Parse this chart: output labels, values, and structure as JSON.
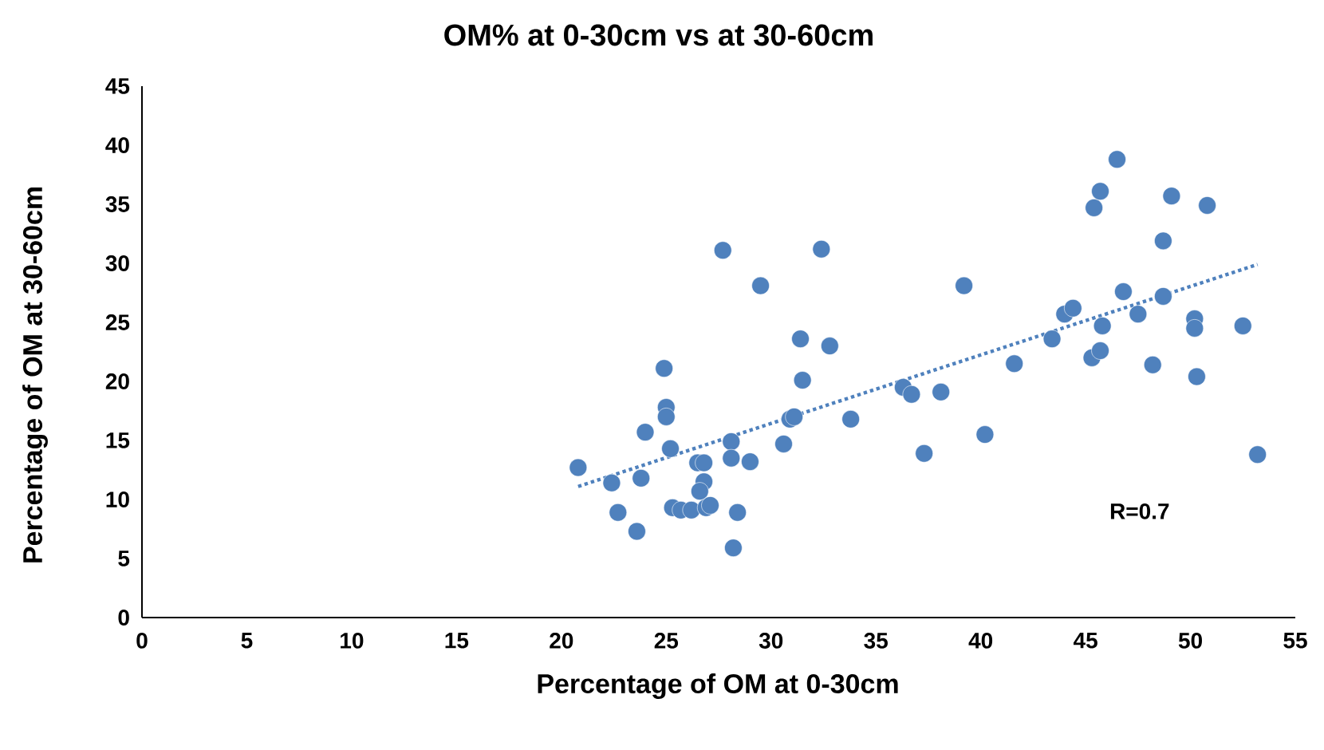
{
  "chart_data": {
    "type": "scatter",
    "title": "OM% at 0-30cm vs at 30-60cm",
    "xlabel": "Percentage of OM at 0-30cm",
    "ylabel": "Percentage of OM at 30-60cm",
    "annotations": [
      "R=0.7"
    ],
    "xlim": [
      0,
      55
    ],
    "ylim": [
      0,
      45
    ],
    "xticks": [
      0,
      5,
      10,
      15,
      20,
      25,
      30,
      35,
      40,
      45,
      50,
      55
    ],
    "yticks": [
      0,
      5,
      10,
      15,
      20,
      25,
      30,
      35,
      40,
      45
    ],
    "grid": false,
    "marker": "circle",
    "series": [
      {
        "color": "#4f81bd",
        "x": [
          20.8,
          22.4,
          22.7,
          23.8,
          23.6,
          24.0,
          24.9,
          25.0,
          25.0,
          25.2,
          25.3,
          25.7,
          26.5,
          26.2,
          26.8,
          26.6,
          26.9,
          27.1,
          26.8,
          27.7,
          28.1,
          28.1,
          28.4,
          28.2,
          29.0,
          29.5,
          30.6,
          30.9,
          31.1,
          31.5,
          31.4,
          32.4,
          32.8,
          33.8,
          36.3,
          36.7,
          37.3,
          38.1,
          39.2,
          40.2,
          41.6,
          43.4,
          44.0,
          44.4,
          45.4,
          45.7,
          46.5,
          45.3,
          45.7,
          45.8,
          46.8,
          47.5,
          48.2,
          48.7,
          48.7,
          49.1,
          50.2,
          50.2,
          50.3,
          50.8,
          52.5,
          53.2
        ],
        "values": [
          12.7,
          11.4,
          8.9,
          11.8,
          7.3,
          15.7,
          21.1,
          17.8,
          17.0,
          14.3,
          9.3,
          9.1,
          13.1,
          9.1,
          11.5,
          10.7,
          9.3,
          9.5,
          13.1,
          31.1,
          14.9,
          13.5,
          8.9,
          5.9,
          13.2,
          28.1,
          14.7,
          16.8,
          17.0,
          20.1,
          23.6,
          31.2,
          23.0,
          16.8,
          19.5,
          18.9,
          13.9,
          19.1,
          28.1,
          15.5,
          21.5,
          23.6,
          25.7,
          26.2,
          34.7,
          36.1,
          38.8,
          22.0,
          22.6,
          24.7,
          27.6,
          25.7,
          21.4,
          27.2,
          31.9,
          35.7,
          25.3,
          24.5,
          20.4,
          34.9,
          24.7,
          13.8
        ]
      },
      {
        "type": "line",
        "color": "#4f81bd",
        "line_style": "dotted",
        "marker": "none",
        "x": [
          20.8,
          53.2
        ],
        "values": [
          11.1,
          29.9
        ]
      }
    ]
  }
}
